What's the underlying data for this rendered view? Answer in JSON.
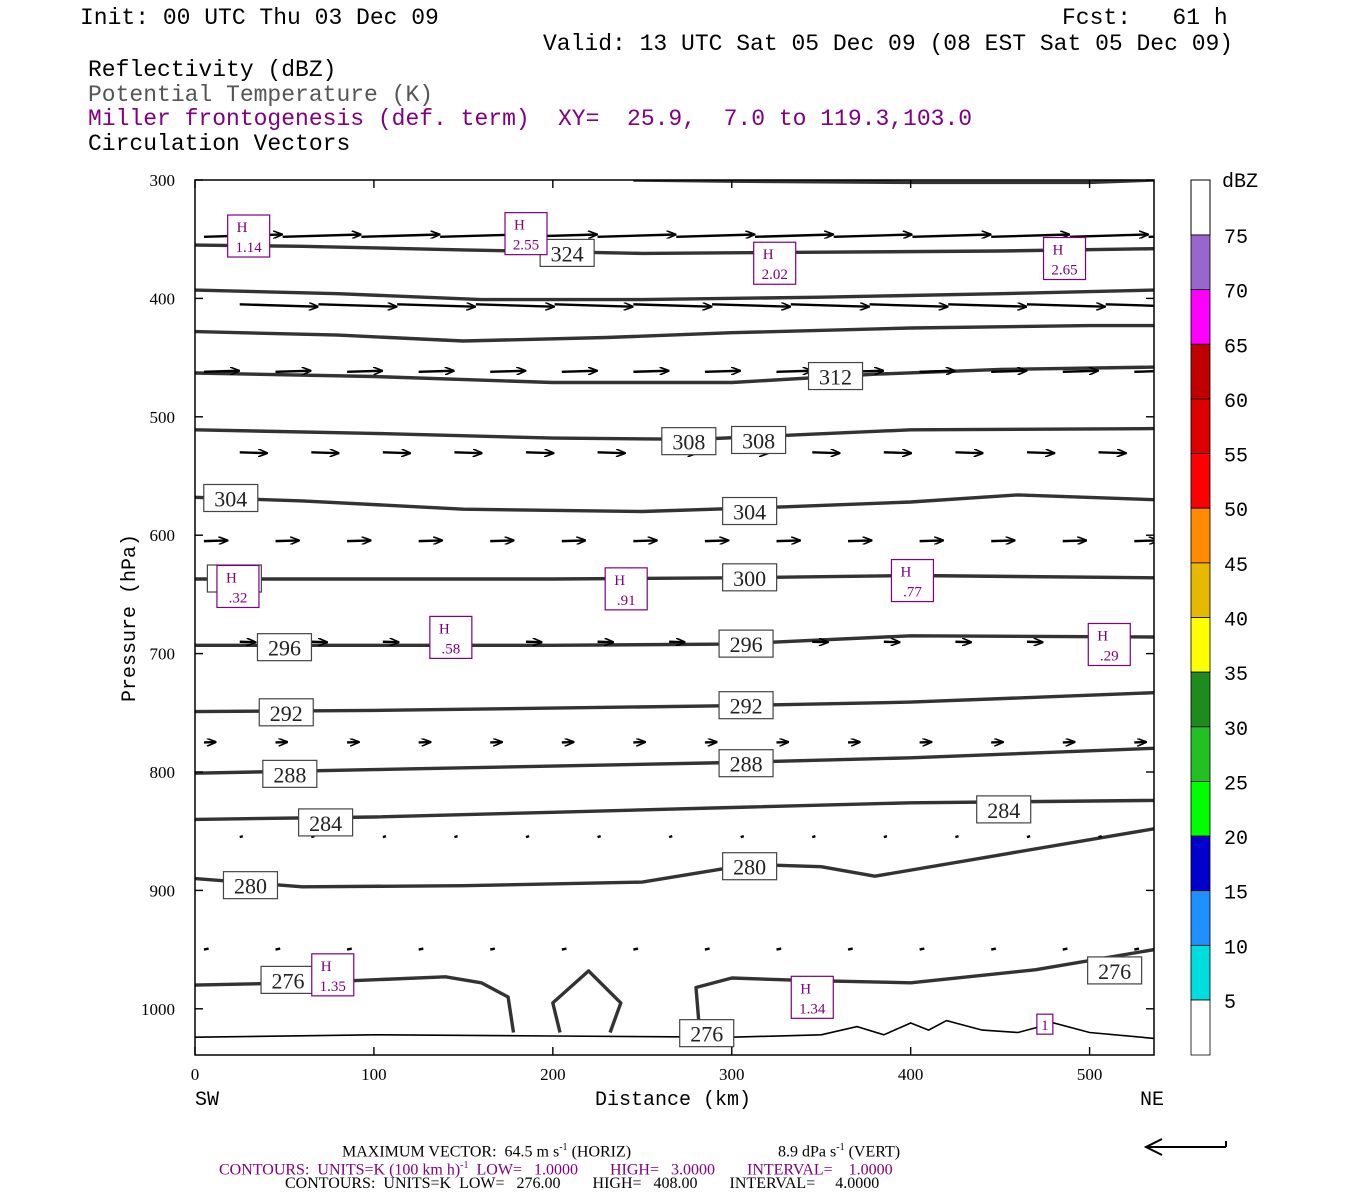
{
  "header": {
    "init": "Init: 00 UTC Thu 03 Dec 09",
    "fcst": "Fcst:   61 h",
    "valid": "Valid: 13 UTC Sat 05 Dec 09 (08 EST Sat 05 Dec 09)",
    "fields": {
      "reflectivity": "Reflectivity (dBZ)",
      "theta": "Potential Temperature (K)",
      "frontogenesis": "Miller frontogenesis (def. term)",
      "xy": "XY=  25.9,  7.0 to 119.3,103.0",
      "vectors": "Circulation Vectors"
    }
  },
  "colors": {
    "theta_contour": "#333333",
    "frontogenesis": "#800080",
    "surface": "#000000"
  },
  "footer": {
    "max_vector_label": "MAXIMUM VECTOR:  64.5 m s",
    "max_vector_sup": "-1",
    "max_vector_horiz": " (HORIZ)",
    "max_vector_vert": "8.9 dPa s",
    "max_vector_vert_sup": "-1",
    "max_vector_vert_suffix": " (VERT)",
    "contours_fronto_a": "CONTOURS:  UNITS=K (100 km h)",
    "contours_fronto_sup": "-1",
    "contours_fronto_b": "  LOW=   1.0000        HIGH=   3.0000        INTERVAL=    1.0000",
    "contours_theta": "CONTOURS:  UNITS=K  LOW=   276.00        HIGH=   408.00        INTERVAL=     4.0000"
  },
  "chart_data": {
    "type": "cross-section",
    "xlabel": "Distance (km)",
    "ylabel": "Pressure (hPa)",
    "xlim": [
      0,
      536
    ],
    "ylim": [
      1040,
      300
    ],
    "x_ticks": [
      "0",
      "100",
      "200",
      "300",
      "400",
      "500"
    ],
    "y_ticks": [
      "300",
      "400",
      "500",
      "600",
      "700",
      "800",
      "900",
      "1000"
    ],
    "x_end_labels": {
      "left": "SW",
      "right": "NE"
    },
    "theta_contours": [
      {
        "value": 328,
        "points": [
          [
            245,
            300
          ],
          [
            300,
            301
          ],
          [
            400,
            302
          ],
          [
            500,
            302
          ],
          [
            536,
            300
          ]
        ]
      },
      {
        "value": 324,
        "points": [
          [
            0,
            355
          ],
          [
            60,
            356
          ],
          [
            150,
            359
          ],
          [
            250,
            362
          ],
          [
            350,
            361
          ],
          [
            450,
            360
          ],
          [
            536,
            358
          ]
        ]
      },
      {
        "value": 320,
        "points": [
          [
            0,
            393
          ],
          [
            80,
            396
          ],
          [
            160,
            401
          ],
          [
            250,
            401
          ],
          [
            350,
            399
          ],
          [
            450,
            396
          ],
          [
            536,
            393
          ]
        ]
      },
      {
        "value": 316,
        "points": [
          [
            0,
            428
          ],
          [
            80,
            431
          ],
          [
            150,
            436
          ],
          [
            230,
            433
          ],
          [
            300,
            429
          ],
          [
            400,
            425
          ],
          [
            500,
            423
          ],
          [
            536,
            423
          ]
        ]
      },
      {
        "value": 312,
        "points": [
          [
            0,
            463
          ],
          [
            100,
            466
          ],
          [
            200,
            471
          ],
          [
            300,
            471
          ],
          [
            380,
            464
          ],
          [
            450,
            460
          ],
          [
            536,
            458
          ]
        ]
      },
      {
        "value": 308,
        "points": [
          [
            0,
            511
          ],
          [
            100,
            514
          ],
          [
            200,
            518
          ],
          [
            280,
            519
          ],
          [
            340,
            515
          ],
          [
            400,
            511
          ],
          [
            536,
            510
          ]
        ]
      },
      {
        "value": 304,
        "points": [
          [
            0,
            568
          ],
          [
            60,
            571
          ],
          [
            150,
            578
          ],
          [
            250,
            580
          ],
          [
            330,
            576
          ],
          [
            400,
            572
          ],
          [
            460,
            566
          ],
          [
            536,
            570
          ]
        ]
      },
      {
        "value": 300,
        "points": [
          [
            0,
            637
          ],
          [
            100,
            637
          ],
          [
            200,
            637
          ],
          [
            300,
            636
          ],
          [
            400,
            634
          ],
          [
            536,
            636
          ]
        ]
      },
      {
        "value": 296,
        "points": [
          [
            0,
            693
          ],
          [
            100,
            693
          ],
          [
            200,
            693
          ],
          [
            300,
            692
          ],
          [
            400,
            685
          ],
          [
            536,
            686
          ]
        ]
      },
      {
        "value": 292,
        "points": [
          [
            0,
            749
          ],
          [
            100,
            748
          ],
          [
            200,
            746
          ],
          [
            300,
            744
          ],
          [
            400,
            741
          ],
          [
            536,
            733
          ]
        ]
      },
      {
        "value": 288,
        "points": [
          [
            0,
            801
          ],
          [
            100,
            798
          ],
          [
            200,
            795
          ],
          [
            300,
            792
          ],
          [
            400,
            788
          ],
          [
            536,
            780
          ]
        ]
      },
      {
        "value": 284,
        "points": [
          [
            0,
            840
          ],
          [
            100,
            838
          ],
          [
            200,
            834
          ],
          [
            300,
            830
          ],
          [
            400,
            826
          ],
          [
            536,
            824
          ]
        ]
      },
      {
        "value": 280,
        "points": [
          [
            0,
            890
          ],
          [
            60,
            897
          ],
          [
            150,
            896
          ],
          [
            250,
            893
          ],
          [
            310,
            878
          ],
          [
            350,
            880
          ],
          [
            380,
            888
          ],
          [
            450,
            870
          ],
          [
            536,
            848
          ]
        ]
      },
      {
        "value": 276,
        "points": [
          [
            0,
            980
          ],
          [
            60,
            978
          ],
          [
            140,
            973
          ],
          [
            160,
            978
          ],
          [
            175,
            990
          ],
          [
            178,
            1020
          ]
        ]
      },
      {
        "value": 276,
        "points": [
          [
            282,
            1018
          ],
          [
            280,
            982
          ],
          [
            300,
            974
          ],
          [
            340,
            976
          ],
          [
            400,
            978
          ],
          [
            470,
            967
          ],
          [
            536,
            950
          ]
        ]
      },
      {
        "value": 276,
        "points": [
          [
            204,
            1020
          ],
          [
            200,
            995
          ],
          [
            220,
            968
          ],
          [
            238,
            995
          ],
          [
            232,
            1020
          ]
        ]
      }
    ],
    "contour_labels": [
      {
        "value": 324,
        "x": 208,
        "p": 362
      },
      {
        "value": 312,
        "x": 358,
        "p": 466
      },
      {
        "value": 308,
        "x": 276,
        "p": 521
      },
      {
        "value": 308,
        "x": 315,
        "p": 520
      },
      {
        "value": 304,
        "x": 20,
        "p": 569
      },
      {
        "value": 304,
        "x": 310,
        "p": 580
      },
      {
        "value": 300,
        "x": 22,
        "p": 637
      },
      {
        "value": 300,
        "x": 310,
        "p": 636
      },
      {
        "value": 296,
        "x": 50,
        "p": 695
      },
      {
        "value": 296,
        "x": 308,
        "p": 692
      },
      {
        "value": 292,
        "x": 51,
        "p": 750
      },
      {
        "value": 292,
        "x": 308,
        "p": 744
      },
      {
        "value": 288,
        "x": 53,
        "p": 802
      },
      {
        "value": 288,
        "x": 308,
        "p": 793
      },
      {
        "value": 284,
        "x": 73,
        "p": 843
      },
      {
        "value": 284,
        "x": 452,
        "p": 832
      },
      {
        "value": 280,
        "x": 31,
        "p": 896
      },
      {
        "value": 280,
        "x": 310,
        "p": 880
      },
      {
        "value": 276,
        "x": 52,
        "p": 976
      },
      {
        "value": 276,
        "x": 514,
        "p": 968
      },
      {
        "value": 276,
        "x": 286,
        "p": 1021
      }
    ],
    "frontogenesis_maxima": [
      {
        "label": "H",
        "value": "1.14",
        "x": 30,
        "p": 349
      },
      {
        "label": "H",
        "value": "2.55",
        "x": 185,
        "p": 347
      },
      {
        "label": "H",
        "value": "2.02",
        "x": 324,
        "p": 372
      },
      {
        "label": "H",
        "value": "2.65",
        "x": 486,
        "p": 368
      },
      {
        "label": "H",
        "value": ".32",
        "x": 24,
        "p": 645
      },
      {
        "label": "H",
        "value": ".91",
        "x": 241,
        "p": 647
      },
      {
        "label": "H",
        "value": ".77",
        "x": 401,
        "p": 640
      },
      {
        "label": "H",
        "value": ".58",
        "x": 143,
        "p": 688
      },
      {
        "label": "H",
        "value": ".29",
        "x": 511,
        "p": 694
      },
      {
        "label": "H",
        "value": "1.35",
        "x": 77,
        "p": 973
      },
      {
        "label": "H",
        "value": "1.34",
        "x": 345,
        "p": 992
      },
      {
        "label": "",
        "value": "1",
        "x": 475,
        "p": 1013
      }
    ],
    "vector_rows": [
      {
        "p": 348,
        "u": 1.0
      },
      {
        "p": 405,
        "u": 1.0
      },
      {
        "p": 462,
        "u": 0.45
      },
      {
        "p": 530,
        "u": 0.35
      },
      {
        "p": 605,
        "u": 0.3
      },
      {
        "p": 690,
        "u": 0.2
      },
      {
        "p": 775,
        "u": 0.15
      },
      {
        "p": 855,
        "u": 0.04
      },
      {
        "p": 950,
        "u": 0.06
      }
    ],
    "surface_pressure": [
      [
        0,
        1024
      ],
      [
        100,
        1022
      ],
      [
        200,
        1023
      ],
      [
        300,
        1024
      ],
      [
        350,
        1022
      ],
      [
        370,
        1015
      ],
      [
        385,
        1022
      ],
      [
        400,
        1012
      ],
      [
        410,
        1018
      ],
      [
        420,
        1010
      ],
      [
        440,
        1018
      ],
      [
        460,
        1020
      ],
      [
        480,
        1012
      ],
      [
        500,
        1020
      ],
      [
        536,
        1025
      ]
    ],
    "colorbar": {
      "label": "dBZ",
      "levels": [
        "75",
        "70",
        "65",
        "60",
        "55",
        "50",
        "45",
        "40",
        "35",
        "30",
        "25",
        "20",
        "15",
        "10",
        "5"
      ],
      "colors": [
        "#9966cc",
        "#ff00ff",
        "#c00000",
        "#dd0000",
        "#ff0000",
        "#ff8c00",
        "#e6b800",
        "#ffff00",
        "#1e8b1e",
        "#22c022",
        "#00ff00",
        "#0000cc",
        "#1e90ff",
        "#00dddd",
        "#ffffff"
      ]
    }
  }
}
